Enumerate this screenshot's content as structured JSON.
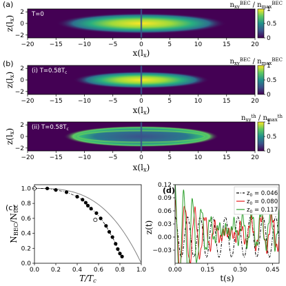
{
  "colors": {
    "viridis_low": "#440154",
    "viridis_high": "#fde725",
    "gray_curve": "#808080",
    "legend_black": "#000000",
    "legend_red": "#e41a1c",
    "legend_green": "#2ca02c"
  },
  "chart_data": [
    {
      "type": "heatmap",
      "panel_label": "(a)",
      "inset_text": "T=0",
      "xlabel": "x(l_x)",
      "ylabel": "z(l_x)",
      "xlim": [
        -20,
        20
      ],
      "ylim": [
        -2.5,
        2.5
      ],
      "xticks": [
        "-20",
        "-15",
        "-10",
        "-5",
        "0",
        "5",
        "10",
        "15",
        "20"
      ],
      "yticks": [
        "2",
        "0",
        "-2"
      ],
      "colorbar": {
        "label": "n_xy^BEC / n_max^BEC",
        "ticks": [
          "1",
          "0.5",
          "0"
        ]
      },
      "cloud": {
        "half_length": 15,
        "half_height": 1.2,
        "center_dip": true
      }
    },
    {
      "type": "heatmap",
      "panel_label": "(b)",
      "inset_text": "(i)  T=0.58T_c",
      "xlabel": "x(l_x)",
      "ylabel": "z(l_x)",
      "xlim": [
        -20,
        20
      ],
      "ylim": [
        -2.5,
        2.5
      ],
      "xticks": [
        "-20",
        "-15",
        "-10",
        "-5",
        "0",
        "5",
        "10",
        "15",
        "20"
      ],
      "yticks": [
        "2",
        "0",
        "-2"
      ],
      "colorbar": {
        "label": "n_xy^BEC / n_max^BEC",
        "ticks": [
          "1",
          "0.5",
          "0"
        ]
      },
      "cloud": {
        "half_length": 12,
        "half_height": 1.0,
        "center_dip": true
      }
    },
    {
      "type": "heatmap",
      "panel_label": "",
      "inset_text": "(ii)  T=0.58T_c",
      "xlabel": "x(l_x)",
      "ylabel": "z(l_x)",
      "xlim": [
        -20,
        20
      ],
      "ylim": [
        -2.5,
        2.5
      ],
      "xticks": [
        "-20",
        "-15",
        "-10",
        "-5",
        "0",
        "5",
        "10",
        "15",
        "20"
      ],
      "yticks": [
        "2",
        "0",
        "-2"
      ],
      "colorbar": {
        "label": "n_xy^th / n_max^th",
        "ticks": [
          "1",
          "0.5",
          "0"
        ]
      },
      "cloud": {
        "half_length": 13,
        "half_height": 1.3,
        "ring": true
      }
    },
    {
      "type": "scatter",
      "panel_label": "(c)",
      "xlabel": "T/T_c",
      "ylabel": "N_BEC/N_tot",
      "xlim": [
        0,
        1
      ],
      "ylim": [
        0,
        1.05
      ],
      "xticks": [
        "0.0",
        "0.2",
        "0.4",
        "0.6",
        "0.8",
        "1.0"
      ],
      "yticks": [
        "0.0",
        "0.2",
        "0.4",
        "0.6",
        "0.8",
        "1.0"
      ],
      "points_filled": [
        [
          0.12,
          1.0
        ],
        [
          0.2,
          0.98
        ],
        [
          0.3,
          0.95
        ],
        [
          0.4,
          0.89
        ],
        [
          0.45,
          0.85
        ],
        [
          0.48,
          0.81
        ],
        [
          0.5,
          0.77
        ],
        [
          0.53,
          0.73
        ],
        [
          0.58,
          0.67
        ],
        [
          0.62,
          0.6
        ],
        [
          0.67,
          0.5
        ],
        [
          0.7,
          0.42
        ],
        [
          0.73,
          0.35
        ],
        [
          0.76,
          0.26
        ],
        [
          0.78,
          0.19
        ],
        [
          0.8,
          0.13
        ],
        [
          0.82,
          0.09
        ]
      ],
      "points_open": [
        [
          0.0,
          1.0
        ],
        [
          0.57,
          0.58
        ]
      ],
      "ideal_gas_curve": "1-(T/Tc)^3"
    },
    {
      "type": "line",
      "panel_label": "(d)",
      "xlabel": "t(s)",
      "ylabel": "z(t)",
      "xlim": [
        0,
        0.48
      ],
      "ylim": [
        -0.06,
        0.12
      ],
      "xticks": [
        "0.00",
        "0.15",
        "0.30",
        "0.45"
      ],
      "yticks": [
        "0.12",
        "0.09",
        "0.06",
        "0.03",
        "0.00",
        "-0.03"
      ],
      "legend_position": "top-right",
      "series": [
        {
          "name": "z_0 = 0.046",
          "color": "#000000",
          "style": "dash-dot",
          "amplitude": 0.046,
          "offset": 0.0,
          "period": 0.058,
          "damping": 0.0
        },
        {
          "name": "z_0 = 0.080",
          "color": "#e41a1c",
          "style": "solid",
          "amplitude": 0.08,
          "offset": 0.012,
          "period": 0.045,
          "damping": 5.0
        },
        {
          "name": "z_0 = 0.117",
          "color": "#2ca02c",
          "style": "solid",
          "amplitude": 0.117,
          "offset": 0.02,
          "period": 0.04,
          "damping": 6.0
        }
      ]
    }
  ]
}
